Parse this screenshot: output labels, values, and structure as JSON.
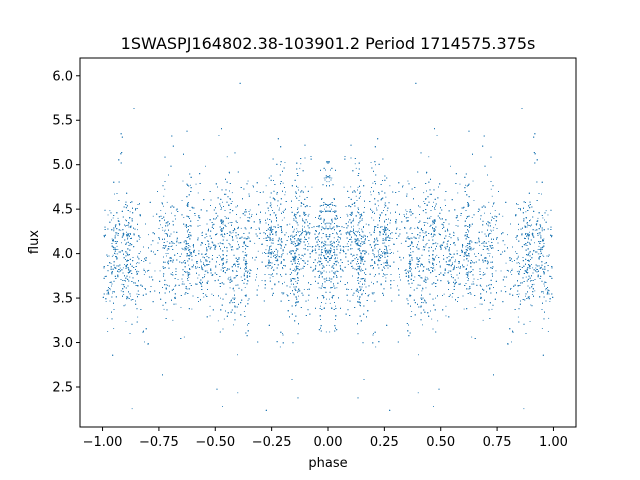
{
  "chart_data": {
    "type": "scatter",
    "title": "1SWASPJ164802.38-103901.2 Period 1714575.375s",
    "xlabel": "phase",
    "ylabel": "flux",
    "xlim": [
      -1.1,
      1.1
    ],
    "ylim": [
      2.05,
      6.2
    ],
    "x_ticks": [
      -1.0,
      -0.75,
      -0.5,
      -0.25,
      0.0,
      0.25,
      0.5,
      0.75,
      1.0
    ],
    "x_tick_labels": [
      "−1.00",
      "−0.75",
      "−0.50",
      "−0.25",
      "0.00",
      "0.25",
      "0.50",
      "0.75",
      "1.00"
    ],
    "y_ticks": [
      2.5,
      3.0,
      3.5,
      4.0,
      4.5,
      5.0,
      5.5,
      6.0
    ],
    "y_tick_labels": [
      "2.5",
      "3.0",
      "3.5",
      "4.0",
      "4.5",
      "5.0",
      "5.5",
      "6.0"
    ],
    "grid": false,
    "legend": "none",
    "marker_color": "#1f77b4",
    "series": [
      {
        "x_range": [
          -1.0,
          1.0
        ],
        "approx_point_count": 14000,
        "flux_median": 4.05,
        "flux_core_range": [
          3.3,
          4.9
        ],
        "flux_full_range": [
          2.2,
          6.0
        ],
        "notes_visible": "dense vertical streaks of points; symmetric pattern about phase 0"
      }
    ]
  }
}
